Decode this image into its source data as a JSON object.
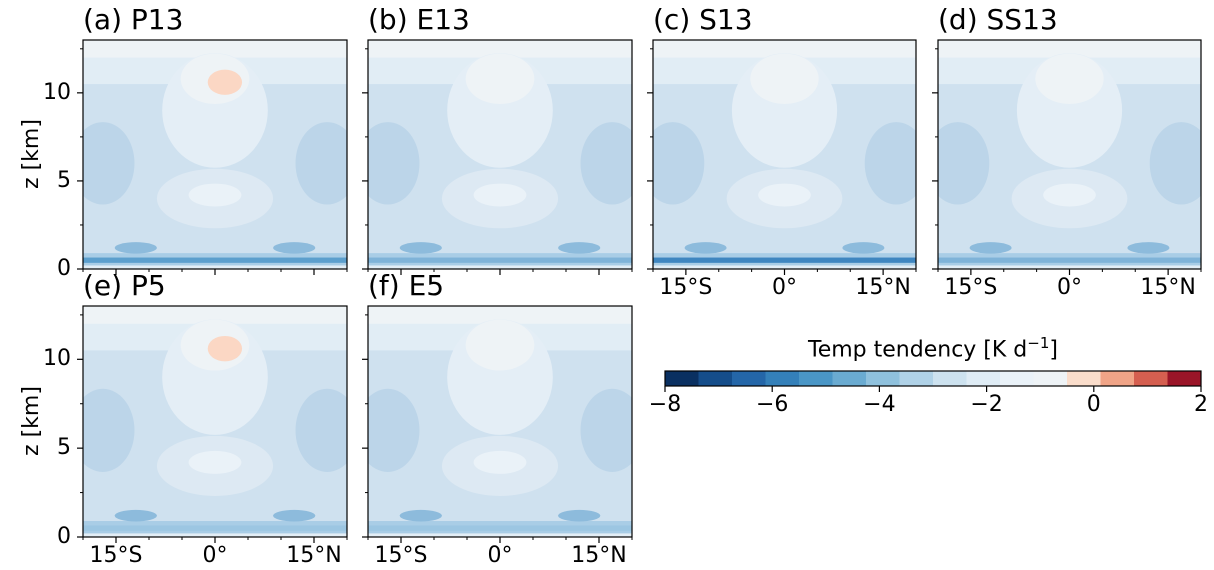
{
  "chart_data": {
    "type": "heatmap",
    "panels": [
      {
        "id": "a",
        "title": "(a) P13",
        "xticks": [],
        "yticks": [
          "0",
          "5",
          "10"
        ],
        "ylabel": "z [km]",
        "top_level_heating": true,
        "surface_band": "strong"
      },
      {
        "id": "b",
        "title": "(b) E13",
        "xticks": [],
        "yticks": [],
        "ylabel": "",
        "top_level_heating": false,
        "surface_band": "patchy"
      },
      {
        "id": "c",
        "title": "(c) S13",
        "xticks": [
          "15°S",
          "0°",
          "15°N"
        ],
        "yticks": [],
        "ylabel": "",
        "top_level_heating": false,
        "surface_band": "strongest"
      },
      {
        "id": "d",
        "title": "(d) SS13",
        "xticks": [
          "15°S",
          "0°",
          "15°N"
        ],
        "yticks": [],
        "ylabel": "",
        "top_level_heating": false,
        "surface_band": "patchy"
      },
      {
        "id": "e",
        "title": "(e) P5",
        "xticks": [
          "15°S",
          "0°",
          "15°N"
        ],
        "yticks": [
          "0",
          "5",
          "10"
        ],
        "ylabel": "z [km]",
        "top_level_heating": true,
        "surface_band": "moderate"
      },
      {
        "id": "f",
        "title": "(f) E5",
        "xticks": [
          "15°S",
          "0°",
          "15°N"
        ],
        "yticks": [],
        "ylabel": "",
        "top_level_heating": false,
        "surface_band": "moderate"
      }
    ],
    "x_range_deg": [
      -20,
      20
    ],
    "y_range_km": [
      0,
      13
    ],
    "colorbar": {
      "label_prefix": "Temp tendency [K d",
      "label_exp": "−1",
      "label_suffix": "]",
      "ticks": [
        "−8",
        "−6",
        "−4",
        "−2",
        "0",
        "2"
      ],
      "range": [
        -8,
        2
      ],
      "levels": 20,
      "colors": [
        "#0a3061",
        "#154d8a",
        "#2466a8",
        "#3480b9",
        "#4a96c6",
        "#6aabd1",
        "#8fc1dd",
        "#b0d2e7",
        "#cde2ef",
        "#dfecf5",
        "#eaf2f8",
        "#eef3f6",
        "#faddcb",
        "#f0a487",
        "#d55f50",
        "#9a1528"
      ]
    }
  }
}
